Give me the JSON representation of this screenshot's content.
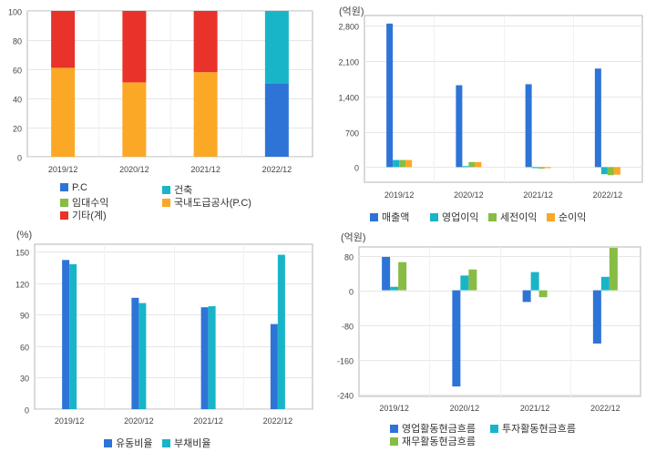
{
  "colors": {
    "blue": "#2e74d6",
    "teal": "#18b5c9",
    "green": "#87bc45",
    "orange": "#fba827",
    "red": "#e8322a",
    "grid": "#e6e6e6",
    "axis": "#b5b5b5"
  },
  "chart_data": [
    {
      "id": "revenue-mix",
      "type": "bar",
      "stacked": true,
      "unit": "",
      "categories": [
        "2019/12",
        "2020/12",
        "2021/12",
        "2022/12"
      ],
      "ylim": [
        0,
        100
      ],
      "yticks": [
        0,
        20,
        40,
        60,
        80,
        100
      ],
      "ytick_labels": [
        "0",
        "20",
        "40",
        "60",
        "80",
        "100"
      ],
      "series": [
        {
          "name": "P.C",
          "color": "#2e74d6",
          "values": [
            0,
            0,
            0,
            50
          ]
        },
        {
          "name": "건축",
          "color": "#18b5c9",
          "values": [
            0,
            0,
            0,
            50
          ]
        },
        {
          "name": "국내도급공사(P.C)",
          "color": "#fba827",
          "values": [
            61,
            51,
            58,
            0
          ]
        },
        {
          "name": "임대수익",
          "color": "#87bc45",
          "values": [
            0,
            0,
            0,
            0
          ]
        },
        {
          "name": "기타(계)",
          "color": "#e8322a",
          "values": [
            39,
            49,
            42,
            0
          ]
        }
      ],
      "legend": [
        {
          "name": "P.C",
          "color": "#2e74d6"
        },
        {
          "name": "건축",
          "color": "#18b5c9"
        },
        {
          "name": "임대수익",
          "color": "#87bc45"
        },
        {
          "name": "국내도급공사(P.C)",
          "color": "#fba827"
        },
        {
          "name": "기타(계)",
          "color": "#e8322a"
        }
      ]
    },
    {
      "id": "income",
      "type": "bar",
      "unit": "(억원)",
      "categories": [
        "2019/12",
        "2020/12",
        "2021/12",
        "2022/12"
      ],
      "ylim": [
        -300,
        3000
      ],
      "yticks": [
        0,
        700,
        1400,
        2100,
        2800
      ],
      "ytick_labels": [
        "0",
        "700",
        "1,400",
        "2,100",
        "2,800"
      ],
      "series": [
        {
          "name": "매출액",
          "color": "#2e74d6",
          "values": [
            2840,
            1620,
            1640,
            1950
          ]
        },
        {
          "name": "영업이익",
          "color": "#18b5c9",
          "values": [
            140,
            20,
            -20,
            -140
          ]
        },
        {
          "name": "세전이익",
          "color": "#87bc45",
          "values": [
            140,
            100,
            -30,
            -160
          ]
        },
        {
          "name": "순이익",
          "color": "#fba827",
          "values": [
            140,
            100,
            -20,
            -150
          ]
        }
      ]
    },
    {
      "id": "ratios",
      "type": "bar",
      "unit": "(%)",
      "categories": [
        "2019/12",
        "2020/12",
        "2021/12",
        "2022/12"
      ],
      "ylim": [
        0,
        157
      ],
      "yticks": [
        0,
        30,
        60,
        90,
        120,
        150
      ],
      "ytick_labels": [
        "0",
        "30",
        "60",
        "90",
        "120",
        "150"
      ],
      "series": [
        {
          "name": "유동비율",
          "color": "#2e74d6",
          "values": [
            142,
            106,
            97,
            81
          ]
        },
        {
          "name": "부채비율",
          "color": "#18b5c9",
          "values": [
            138,
            101,
            98,
            147
          ]
        }
      ]
    },
    {
      "id": "cashflow",
      "type": "bar",
      "unit": "(억원)",
      "categories": [
        "2019/12",
        "2020/12",
        "2021/12",
        "2022/12"
      ],
      "ylim": [
        -245,
        100
      ],
      "yticks": [
        -240,
        -160,
        -80,
        0,
        80
      ],
      "ytick_labels": [
        "-240",
        "-160",
        "-80",
        "0",
        "80"
      ],
      "series": [
        {
          "name": "영업활동현금흐름",
          "color": "#2e74d6",
          "values": [
            77,
            -222,
            -27,
            -123
          ]
        },
        {
          "name": "투자활동현금흐름",
          "color": "#18b5c9",
          "values": [
            8,
            34,
            42,
            31
          ]
        },
        {
          "name": "재무활동현금흐름",
          "color": "#87bc45",
          "values": [
            65,
            48,
            -16,
            98
          ]
        }
      ]
    }
  ]
}
